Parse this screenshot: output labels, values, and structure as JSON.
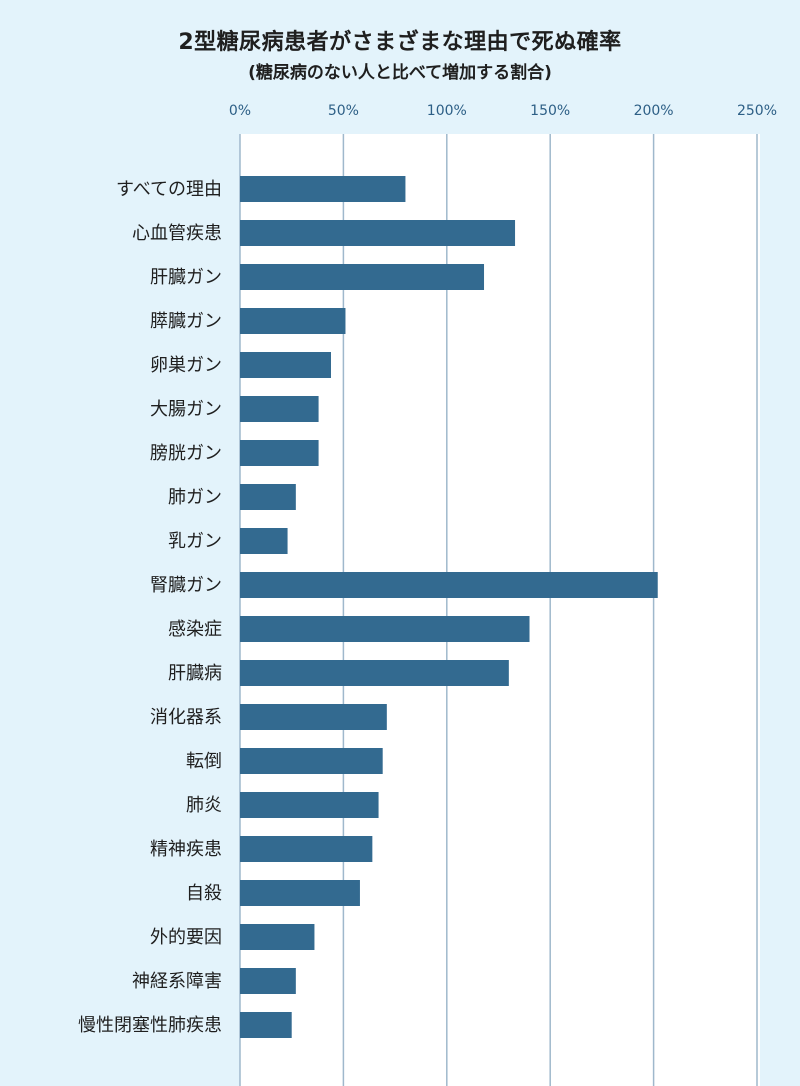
{
  "chart_data": {
    "type": "bar",
    "orientation": "horizontal",
    "title": "2型糖尿病患者がさまざまな理由で死ぬ確率",
    "subtitle": "(糖尿病のない人と比べて増加する割合)",
    "xlim": [
      0,
      250
    ],
    "xticks": [
      0,
      50,
      100,
      150,
      200,
      250
    ],
    "xtick_labels": [
      "0%",
      "50%",
      "100%",
      "150%",
      "200%",
      "250%"
    ],
    "grid": true,
    "bar_color": "#336a90",
    "categories": [
      "すべての理由",
      "心血管疾患",
      "肝臓ガン",
      "膵臓ガン",
      "卵巣ガン",
      "大腸ガン",
      "膀胱ガン",
      "肺ガン",
      "乳ガン",
      "腎臓ガン",
      "感染症",
      "肝臓病",
      "消化器系",
      "転倒",
      "肺炎",
      "精神疾患",
      "自殺",
      "外的要因",
      "神経系障害",
      "慢性閉塞性肺疾患"
    ],
    "values": [
      80,
      133,
      118,
      51,
      44,
      38,
      38,
      27,
      23,
      202,
      140,
      130,
      71,
      69,
      67,
      64,
      58,
      36,
      27,
      25
    ]
  }
}
